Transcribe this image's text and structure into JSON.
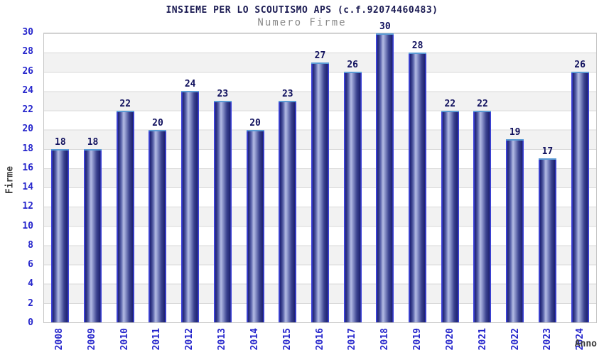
{
  "chart_data": {
    "type": "bar",
    "title": "INSIEME PER LO SCOUTISMO APS (c.f.92074460483)",
    "subtitle": "Numero Firme",
    "xlabel": "Anno",
    "ylabel": "Firme",
    "categories": [
      "2008",
      "2009",
      "2010",
      "2011",
      "2012",
      "2013",
      "2014",
      "2015",
      "2016",
      "2017",
      "2018",
      "2019",
      "2020",
      "2021",
      "2022",
      "2023",
      "2024"
    ],
    "values": [
      18,
      18,
      22,
      20,
      24,
      23,
      20,
      23,
      27,
      26,
      30,
      28,
      22,
      22,
      19,
      17,
      26
    ],
    "ylim": [
      0,
      30
    ],
    "y_tick_step": 2,
    "grid": "horizontal-bands-alternating",
    "legend_position": "none",
    "colors": {
      "bar_edge": "#3d43d9",
      "bar_dark": "#1e2270",
      "bar_light": "#b4bce4",
      "bar_cap": "#5b9bd5",
      "tick_text": "#2626cc",
      "value_label_text": "#11115e",
      "title_text": "#1a1a52",
      "subtitle_text": "#8a8a8a",
      "axis_title_text": "#3d3d3d",
      "band_gray": "#f2f2f2",
      "grid_line": "#d9d9d9",
      "plot_border": "#c4c4c4"
    }
  }
}
